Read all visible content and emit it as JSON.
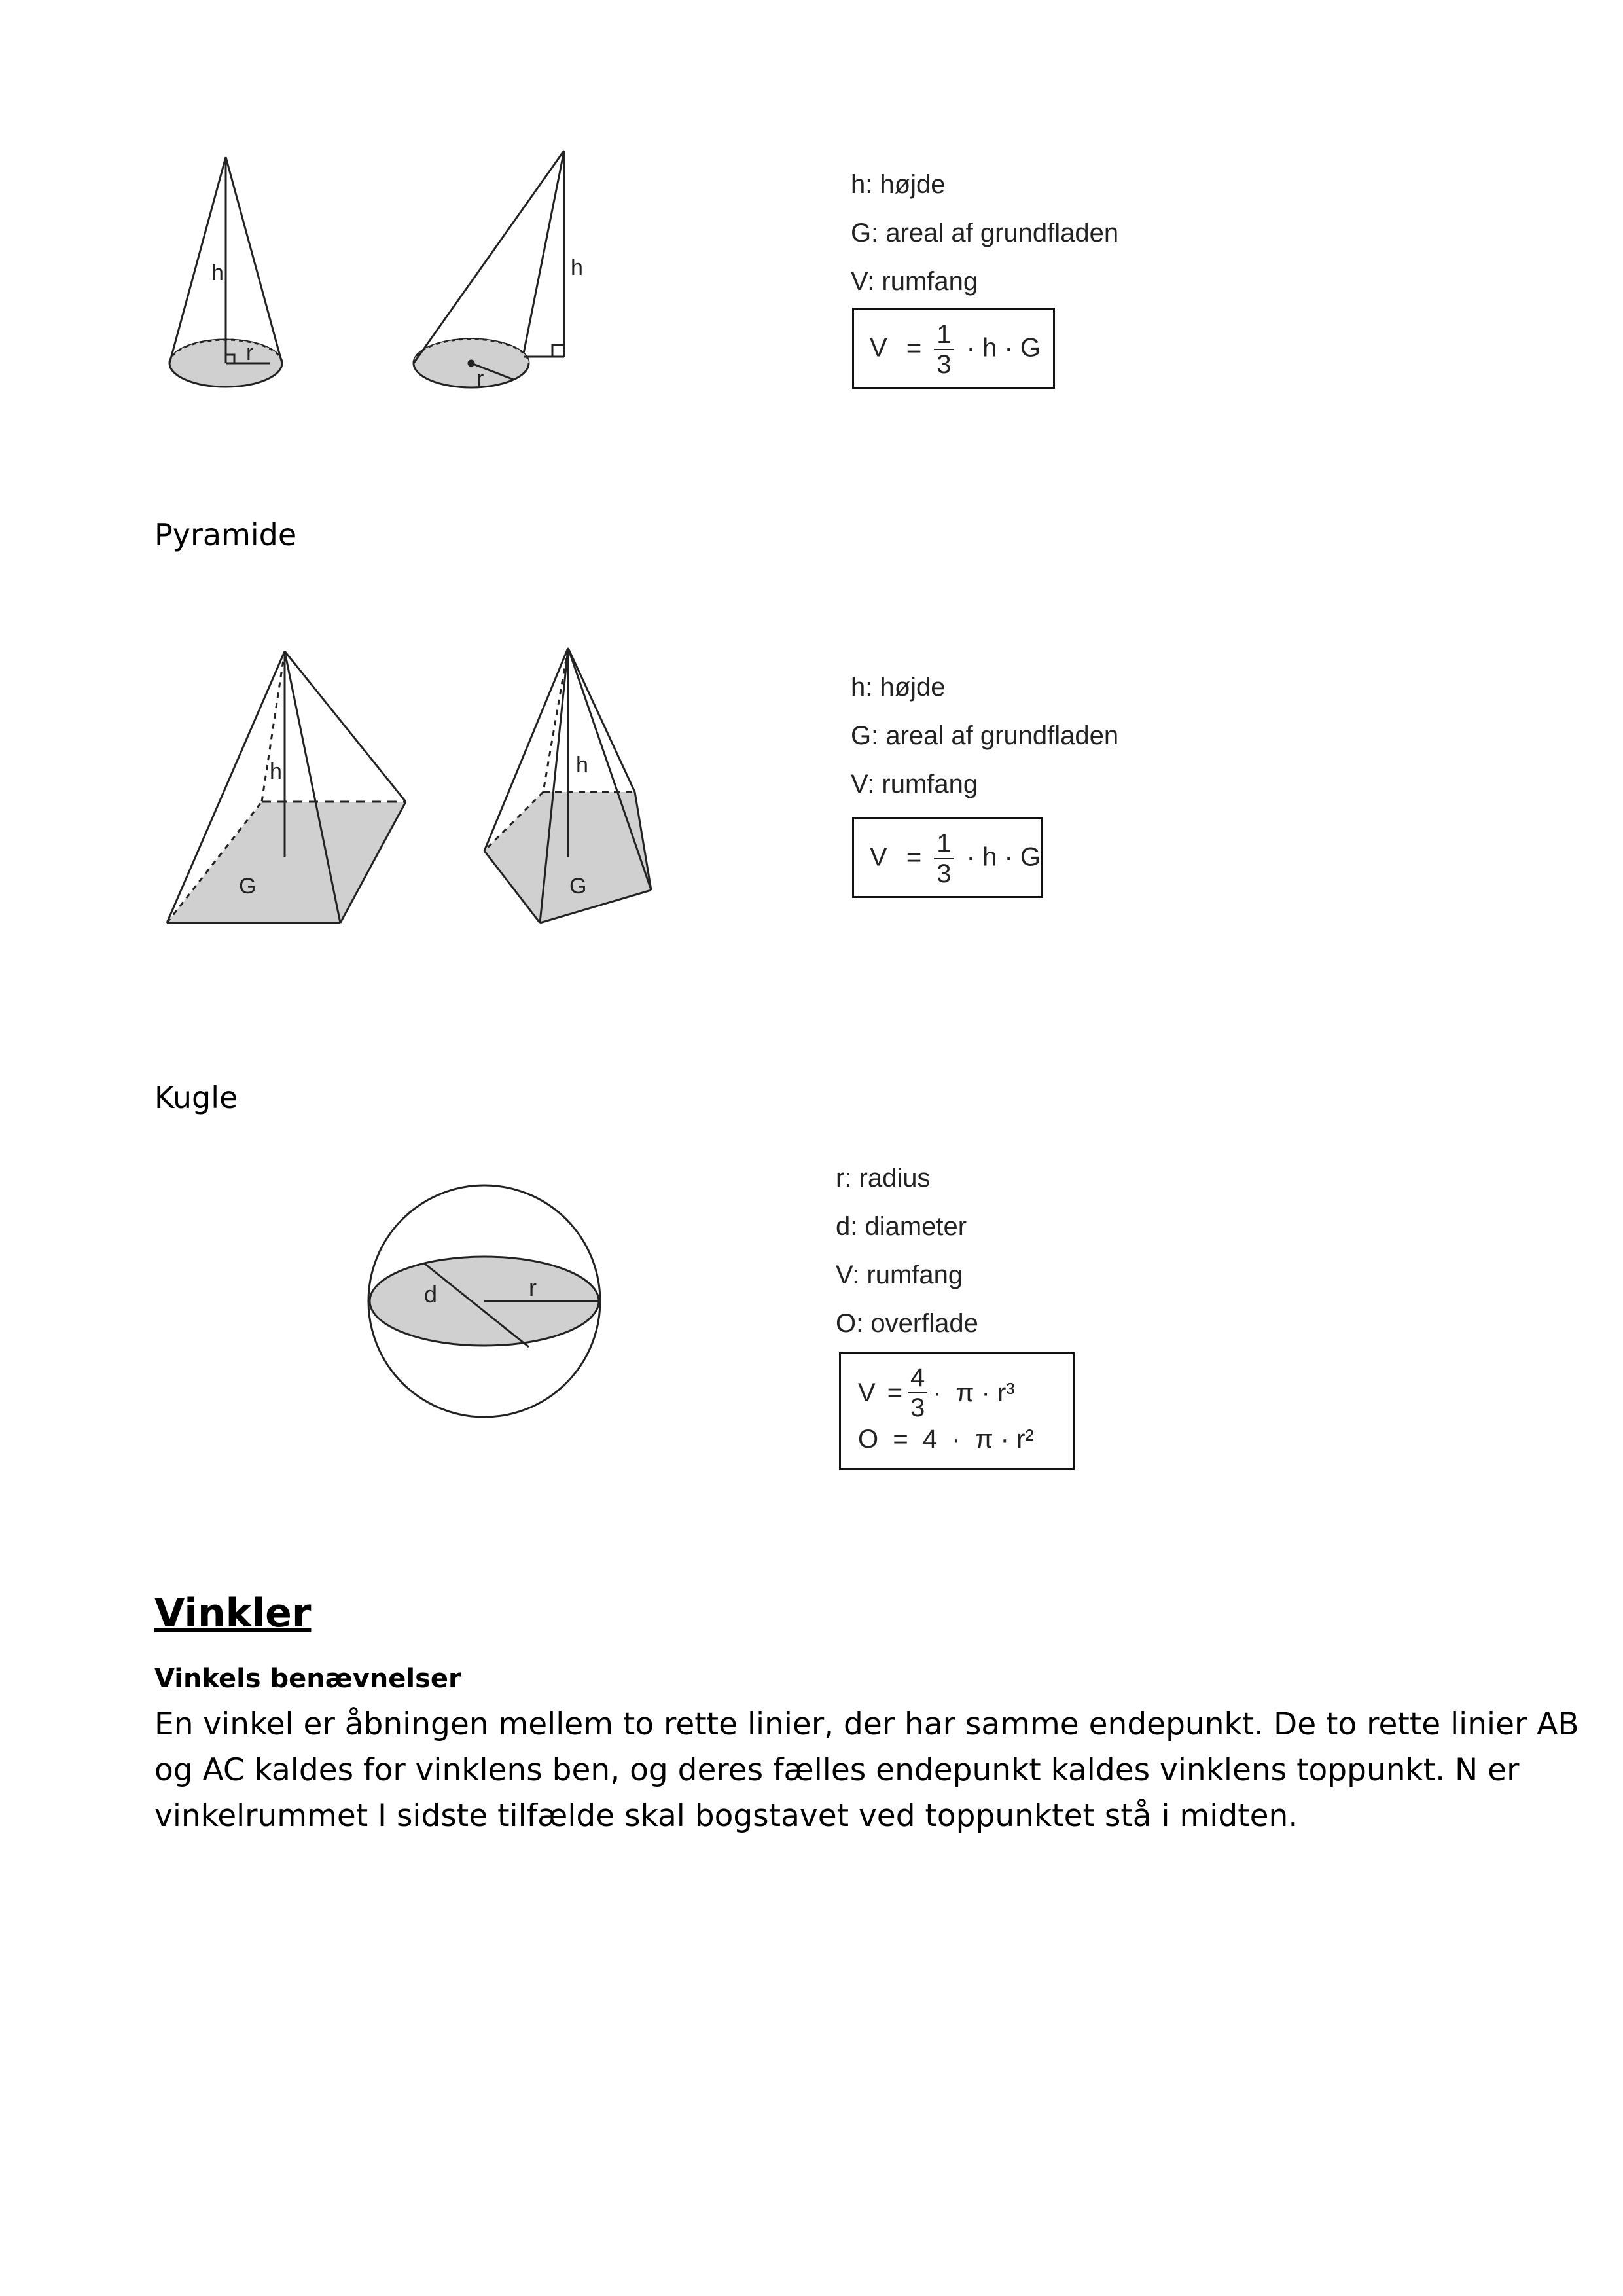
{
  "kegle": {
    "legend": [
      "h: højde",
      "G: areal af grundfladen",
      "V: rumfang"
    ],
    "formula": {
      "lhs": "V",
      "eq": "=",
      "num": "1",
      "den": "3",
      "rest": "· h · G"
    },
    "fig_labels": {
      "h": "h",
      "r": "r"
    }
  },
  "pyramide": {
    "title": "Pyramide",
    "legend": [
      "h: højde",
      "G: areal af grundfladen",
      "V: rumfang"
    ],
    "formula": {
      "lhs": "V",
      "eq": "=",
      "num": "1",
      "den": "3",
      "rest": "· h · G"
    },
    "fig_labels": {
      "h": "h",
      "g": "G"
    }
  },
  "kugle": {
    "title": "Kugle",
    "legend": [
      "r: radius",
      "d: diameter",
      "V: rumfang",
      "O: overflade"
    ],
    "formula_v": {
      "lhs": "V",
      "eq": "=",
      "num": "4",
      "den": "3",
      "rest": "·  π · r³"
    },
    "formula_o": {
      "text": "O  =  4  ·  π · r²"
    },
    "fig_labels": {
      "d": "d",
      "r": "r"
    }
  },
  "vinkler": {
    "heading": "Vinkler",
    "subheading": "Vinkels benævnelser",
    "paragraph": [
      "En vinkel er åbningen mellem to rette linier, der har samme endepunkt. De to rette linier AB",
      "og AC kaldes for vinklens ben, og deres fælles endepunkt kaldes vinklens toppunkt. N er",
      "vinkelrummet I sidste tilfælde skal bogstavet ved toppunktet stå i midten."
    ]
  }
}
